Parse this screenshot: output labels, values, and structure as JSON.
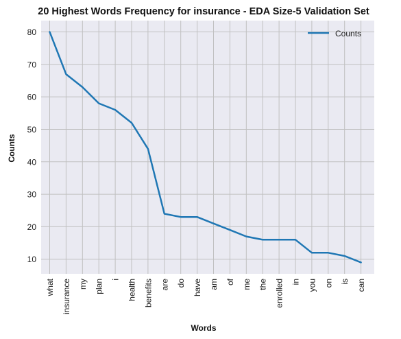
{
  "chart_data": {
    "type": "line",
    "title": "20 Highest Words Frequency for insurance - EDA Size-5 Validation Set",
    "xlabel": "Words",
    "ylabel": "Counts",
    "categories": [
      "what",
      "insurance",
      "my",
      "plan",
      "i",
      "health",
      "benefits",
      "are",
      "do",
      "have",
      "am",
      "of",
      "me",
      "the",
      "enrolled",
      "in",
      "you",
      "on",
      "is",
      "can"
    ],
    "series": [
      {
        "name": "Counts",
        "values": [
          80,
          67,
          63,
          58,
          56,
          52,
          44,
          24,
          23,
          23,
          21,
          19,
          17,
          16,
          16,
          16,
          12,
          12,
          11,
          9
        ],
        "color": "#1f77b4"
      }
    ],
    "ylim": [
      5.5,
      83.5
    ],
    "yticks": [
      10,
      20,
      30,
      40,
      50,
      60,
      70,
      80
    ],
    "grid": true,
    "legend_position": "top-right",
    "background_color": "#eaeaf2",
    "grid_color": "#c0c0c0"
  }
}
